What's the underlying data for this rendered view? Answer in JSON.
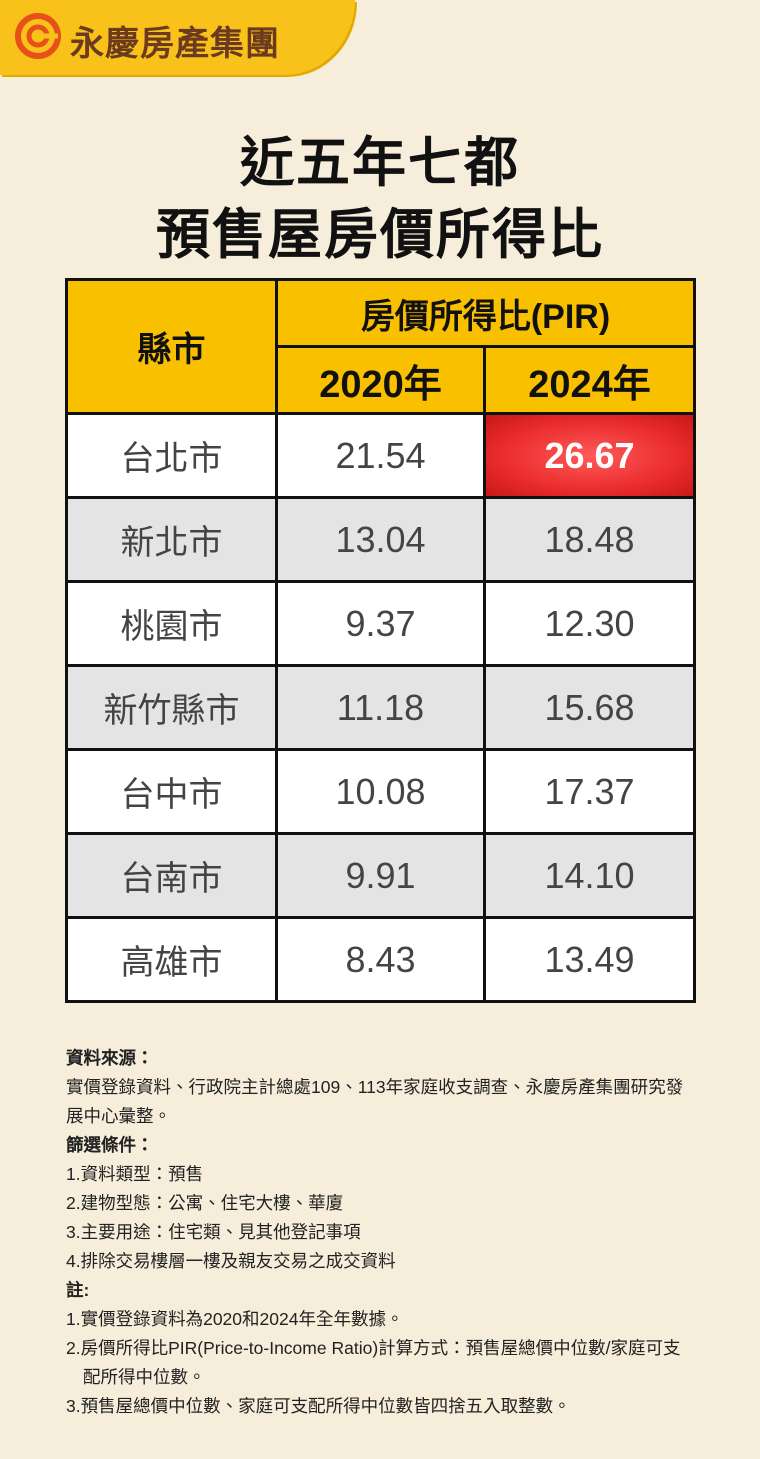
{
  "header": {
    "brand": "永慶房產集團"
  },
  "title": {
    "line1": "近五年七都",
    "line2": "預售屋房價所得比"
  },
  "table": {
    "city_header": "縣市",
    "group_header": "房價所得比(PIR)",
    "year_headers": [
      "2020年",
      "2024年"
    ],
    "rows": [
      [
        "台北市",
        "21.54",
        "26.67"
      ],
      [
        "新北市",
        "13.04",
        "18.48"
      ],
      [
        "桃園市",
        "9.37",
        "12.30"
      ],
      [
        "新竹縣市",
        "11.18",
        "15.68"
      ],
      [
        "台中市",
        "10.08",
        "17.37"
      ],
      [
        "台南市",
        "9.91",
        "14.10"
      ],
      [
        "高雄市",
        "8.43",
        "13.49"
      ]
    ]
  },
  "notes": {
    "source_title": "資料來源：",
    "source_text": "實價登錄資料、行政院主計總處109、113年家庭收支調查、永慶房產集團研究發展中心彙整。",
    "filter_title": "篩選條件：",
    "filters": [
      "1.資料類型：預售",
      "2.建物型態：公寓、住宅大樓、華廈",
      "3.主要用途：住宅類、見其他登記事項",
      "4.排除交易樓層一樓及親友交易之成交資料"
    ],
    "remark_title": "註:",
    "remarks": [
      "1.實價登錄資料為2020和2024年全年數據。",
      "2.房價所得比PIR(Price-to-Income Ratio)計算方式：預售屋總價中位數/家庭可支配所得中位數。",
      "3.預售屋總價中位數、家庭可支配所得中位數皆四捨五入取整數。"
    ]
  }
}
